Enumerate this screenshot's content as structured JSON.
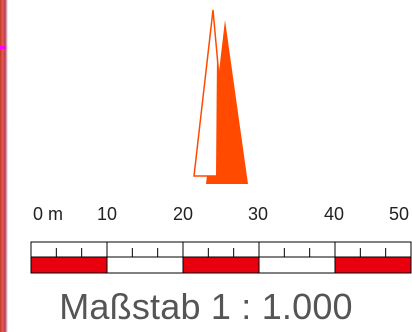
{
  "scale_bar": {
    "unit": "m",
    "ticks": [
      "0 m",
      "10",
      "20",
      "30",
      "40",
      "50"
    ],
    "segment_colors": [
      "#e8000f",
      "#ffffff",
      "#e8000f",
      "#ffffff",
      "#e8000f"
    ],
    "title": "Maßstab 1 : 1.000"
  },
  "north_arrow": {
    "fill_color": "#ff4a00",
    "outline_color": "#ff4a00"
  }
}
